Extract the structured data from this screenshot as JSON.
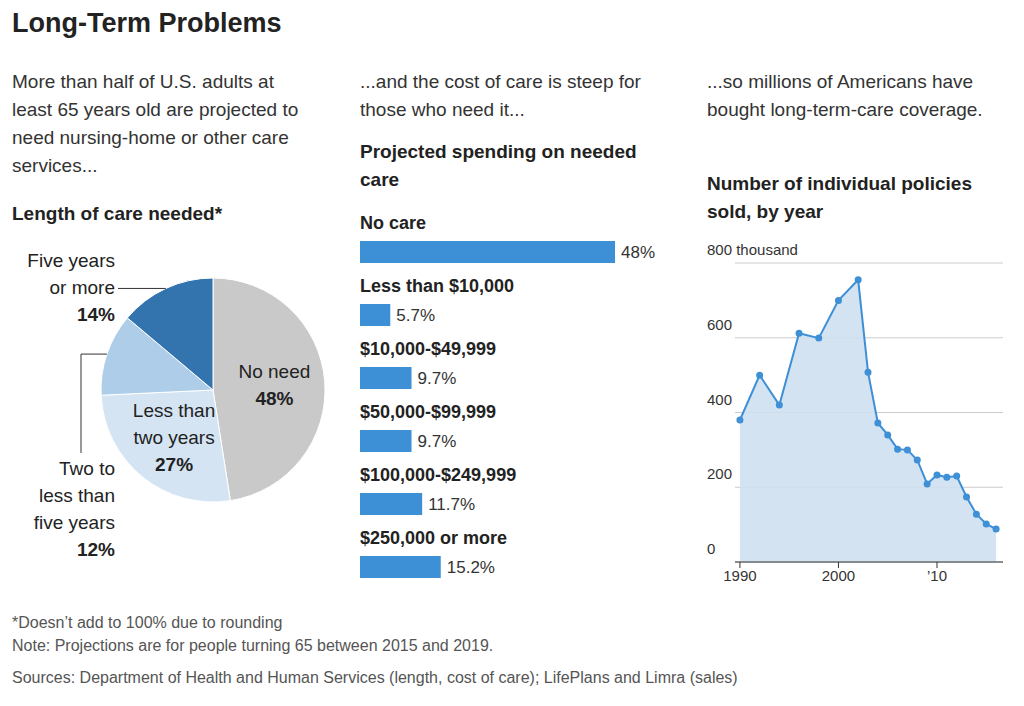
{
  "title": "Long-Term Problems",
  "chart_data": [
    {
      "type": "pie",
      "subtitle": "More than half of U.S. adults at least 65 years old are projected to need nursing-home or other care services...",
      "title": "Length of care needed*",
      "categories": [
        "No need",
        "Less than two years",
        "Two to less than five years",
        "Five years or more"
      ],
      "values": [
        48,
        27,
        12,
        14
      ],
      "value_labels": [
        "48%",
        "27%",
        "12%",
        "14%"
      ],
      "colors": [
        "#c9c9c9",
        "#d4e4f3",
        "#aecde9",
        "#3373ae"
      ],
      "data_labels": true
    },
    {
      "type": "bar",
      "orientation": "horizontal",
      "subtitle": "...and the cost of care is steep for those who need it...",
      "title": "Projected spending on needed care",
      "categories": [
        "No care",
        "Less than $10,000",
        "$10,000-$49,999",
        "$50,000-$99,999",
        "$100,000-$249,999",
        "$250,000 or more"
      ],
      "values": [
        48,
        5.7,
        9.7,
        9.7,
        11.7,
        15.2
      ],
      "value_labels": [
        "48%",
        "5.7%",
        "9.7%",
        "9.7%",
        "11.7%",
        "15.2%"
      ],
      "color": "#3d8fd6",
      "data_labels": true
    },
    {
      "type": "area",
      "subtitle": "...so millions of Americans have bought long-term-care coverage.",
      "title": "Number of individual policies sold, by year",
      "x": [
        1990,
        1992,
        1994,
        1996,
        1998,
        2000,
        2002,
        2003,
        2004,
        2005,
        2006,
        2007,
        2008,
        2009,
        2010,
        2011,
        2012,
        2013,
        2014,
        2015,
        2016
      ],
      "values": [
        380,
        500,
        420,
        612,
        599,
        700,
        755,
        508,
        372,
        340,
        302,
        300,
        273,
        209,
        233,
        227,
        230,
        174,
        128,
        102,
        88
      ],
      "color": "#3d8fd6",
      "marker": "circle",
      "xlim": [
        1989.5,
        2016.7
      ],
      "xticks": [
        1990,
        2000,
        {
          "value": 2010,
          "label": "’10"
        }
      ],
      "ylim": [
        0,
        800
      ],
      "yticks": [
        0,
        200,
        400,
        600,
        {
          "value": 800,
          "label": "800 thousand"
        }
      ],
      "grid": true
    }
  ],
  "footnotes": [
    "*Doesn’t add to 100% due to rounding",
    "Note: Projections are for people turning 65 between 2015 and 2019.",
    "Sources: Department of Health and Human Services (length, cost of care); LifePlans and Limra (sales)"
  ]
}
